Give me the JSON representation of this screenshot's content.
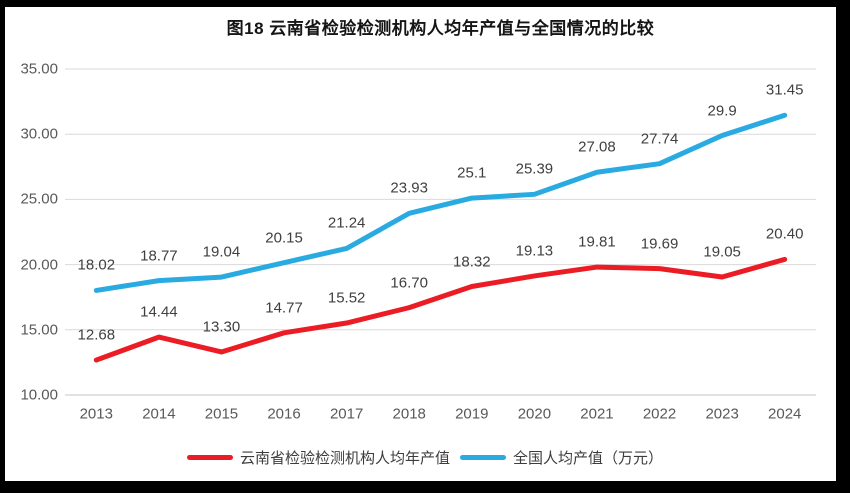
{
  "chart_data": {
    "type": "line",
    "title": "图18  云南省检验检测机构人均年产值与全国情况的比较",
    "categories": [
      "2013",
      "2014",
      "2015",
      "2016",
      "2017",
      "2018",
      "2019",
      "2020",
      "2021",
      "2022",
      "2023",
      "2024"
    ],
    "series": [
      {
        "name": "云南省检验检测机构人均年产值",
        "color": "#EC1C24",
        "values": [
          12.68,
          14.44,
          13.3,
          14.77,
          15.52,
          16.7,
          18.32,
          19.13,
          19.81,
          19.69,
          19.05,
          20.4
        ],
        "labels": [
          "12.68",
          "14.44",
          "13.30",
          "14.77",
          "15.52",
          "16.70",
          "18.32",
          "19.13",
          "19.81",
          "19.69",
          "19.05",
          "20.40"
        ]
      },
      {
        "name": "全国人均产值（万元）",
        "color": "#29ABE2",
        "values": [
          18.02,
          18.77,
          19.04,
          20.15,
          21.24,
          23.93,
          25.1,
          25.39,
          27.08,
          27.74,
          29.9,
          31.45
        ],
        "labels": [
          "18.02",
          "18.77",
          "19.04",
          "20.15",
          "21.24",
          "23.93",
          "25.1",
          "25.39",
          "27.08",
          "27.74",
          "29.9",
          "31.45"
        ]
      }
    ],
    "y_ticks": [
      "35.00",
      "30.00",
      "25.00",
      "20.00",
      "15.00",
      "10.00"
    ],
    "ylim": [
      10,
      35
    ],
    "grid": true,
    "legend_position": "bottom",
    "colors": {
      "gridline": "#D9D9D9",
      "axis_line": "#C6C6C6",
      "tick_text": "#595959",
      "data_label_text": "#404040"
    }
  }
}
